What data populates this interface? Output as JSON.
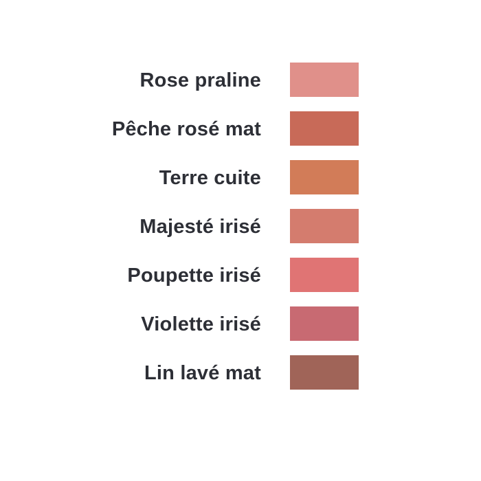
{
  "shades": [
    {
      "name": "Rose praline",
      "color": "#e0908a"
    },
    {
      "name": "Pêche rosé mat",
      "color": "#c86a58"
    },
    {
      "name": "Terre cuite",
      "color": "#d27c58"
    },
    {
      "name": "Majesté irisé",
      "color": "#d47c6e"
    },
    {
      "name": "Poupette irisé",
      "color": "#e07474"
    },
    {
      "name": "Violette irisé",
      "color": "#c86a72"
    },
    {
      "name": "Lin lavé mat",
      "color": "#a06458"
    }
  ]
}
